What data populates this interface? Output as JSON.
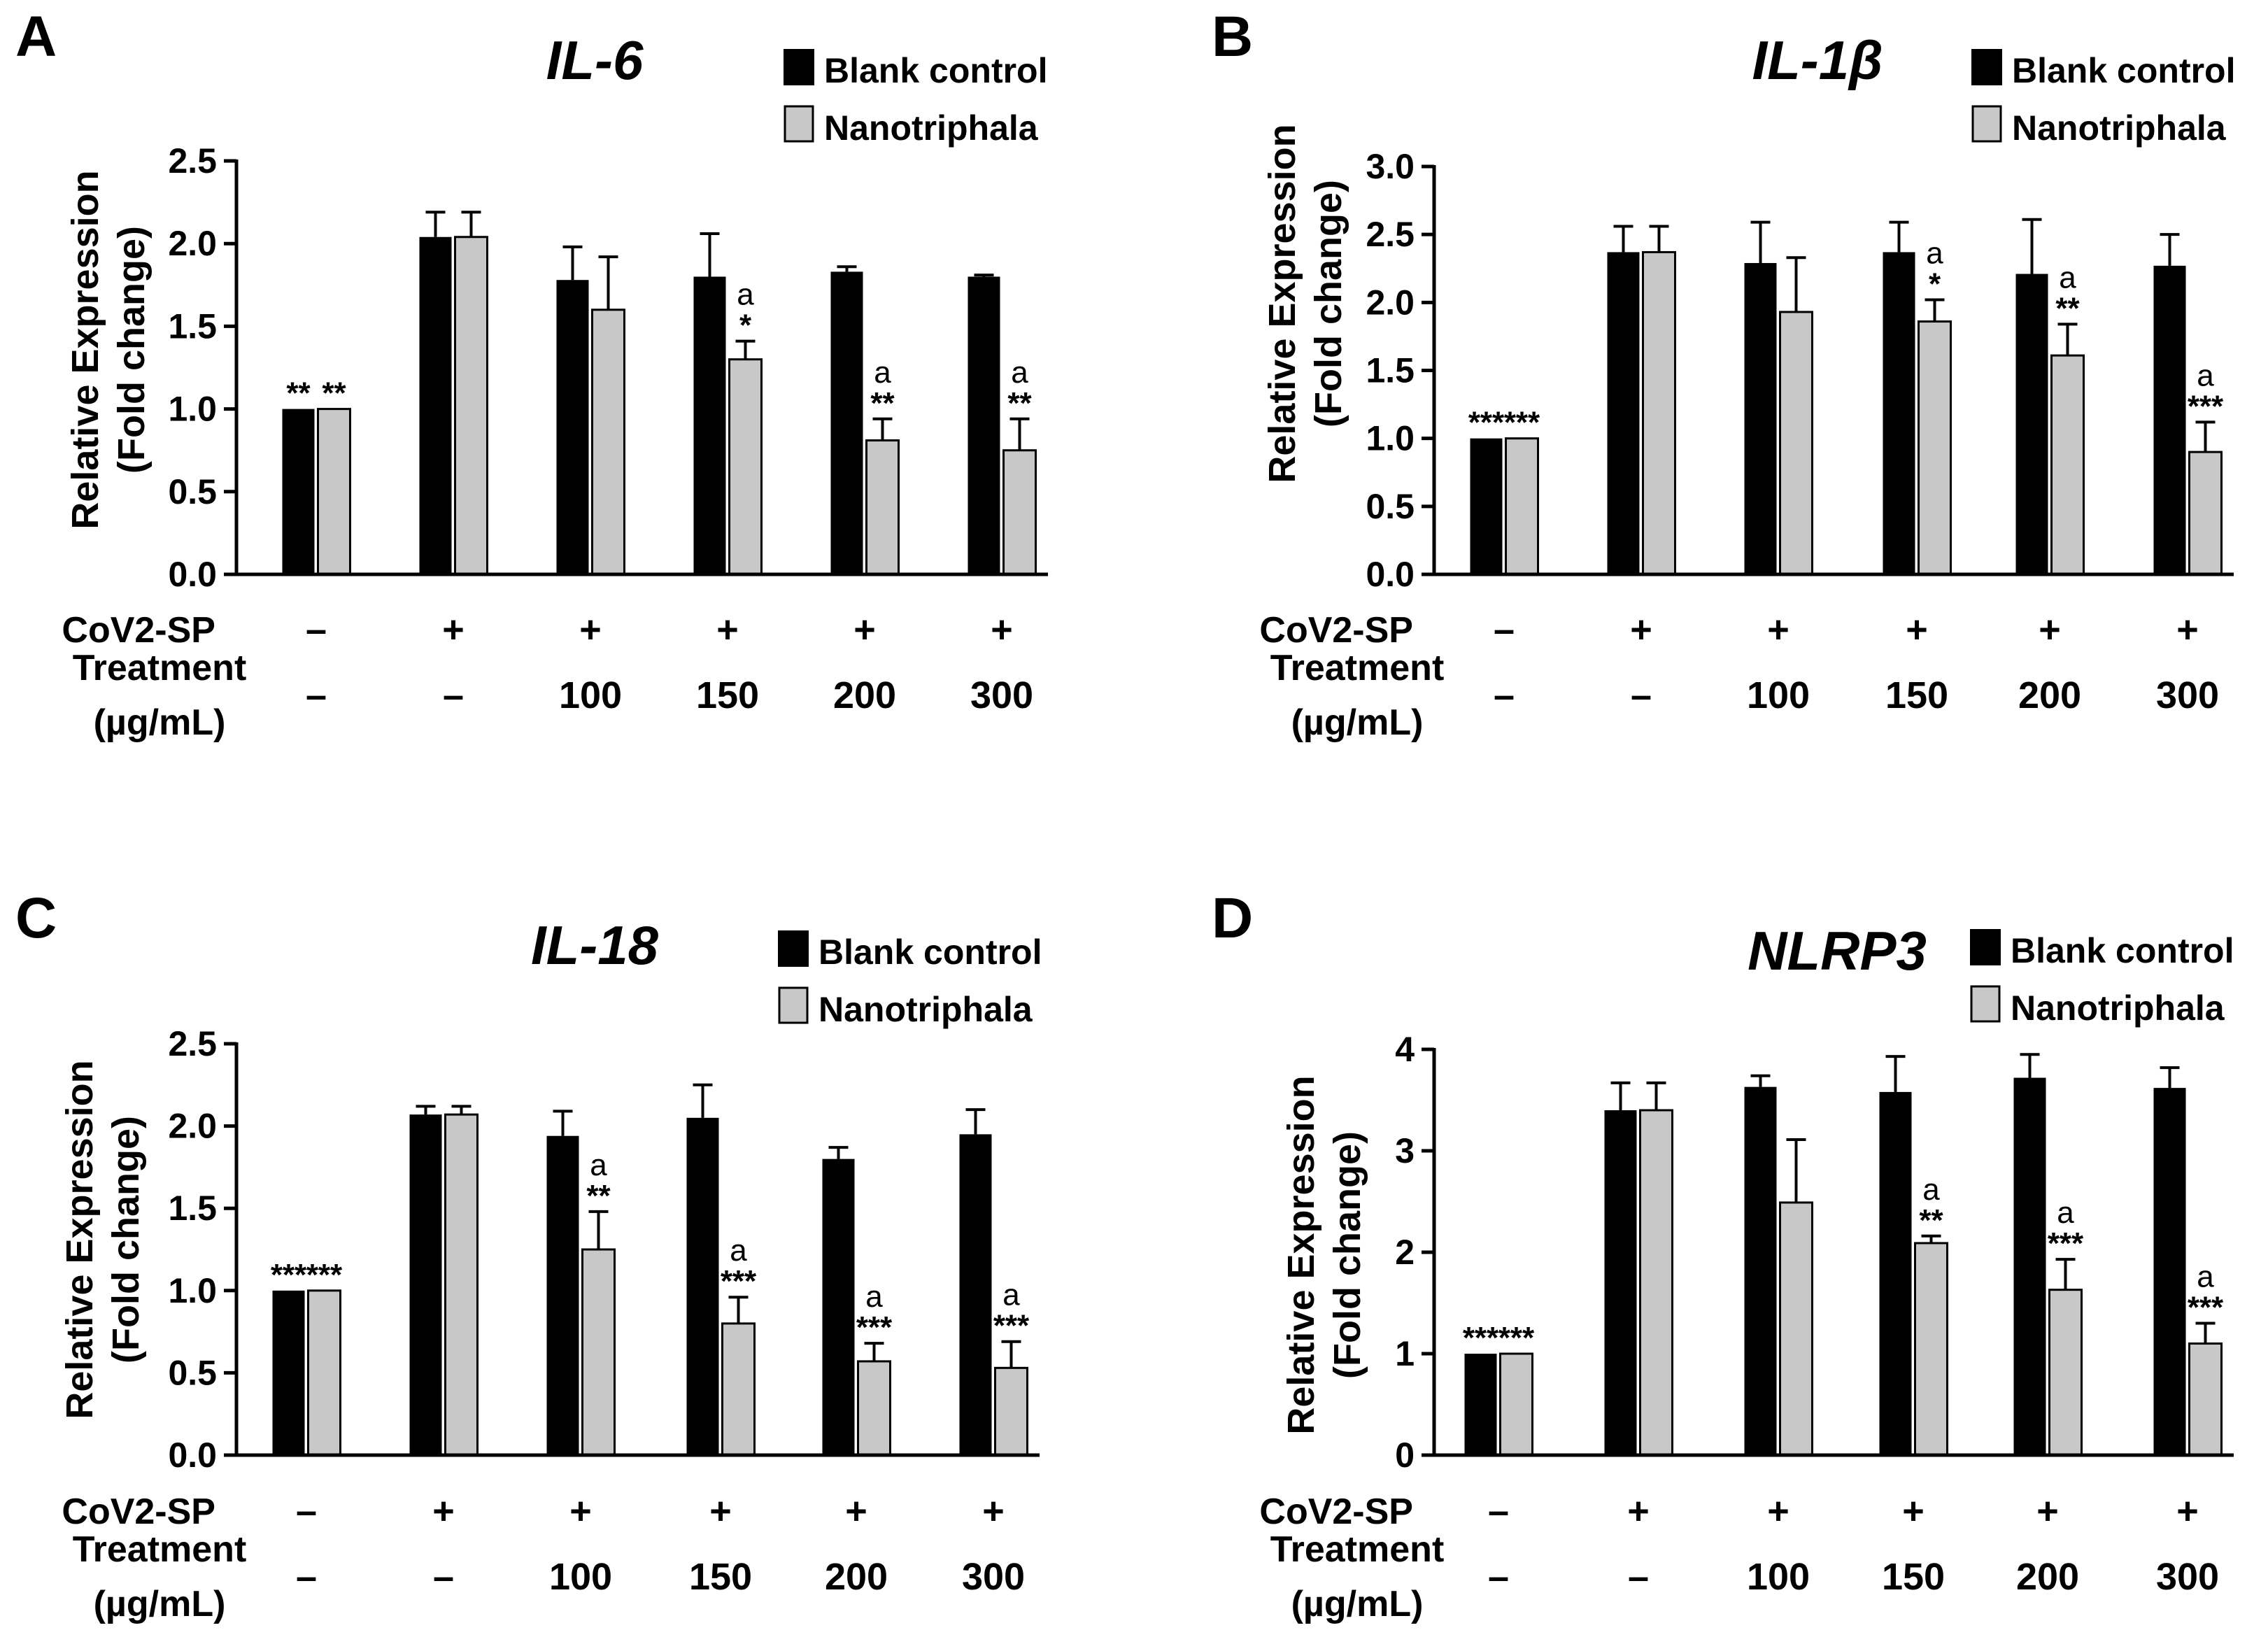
{
  "legend": {
    "blank_label": "Blank control",
    "nano_label": "Nanotriphala",
    "blank_color": "#000000",
    "nano_color": "#c8c8c8"
  },
  "row_labels": {
    "cov": "CoV2-SP",
    "treatment": "Treatment",
    "unit": "(µg/mL)"
  },
  "conditions": {
    "cov": [
      "–",
      "+",
      "+",
      "+",
      "+",
      "+"
    ],
    "treatment": [
      "–",
      "–",
      "100",
      "150",
      "200",
      "300"
    ]
  },
  "ylabel": {
    "line1": "Relative Expression",
    "line2": "(Fold change)"
  },
  "chart_data": [
    {
      "type": "bar",
      "panel": "A",
      "title": "IL-6",
      "ylim": [
        0,
        2.5
      ],
      "yticks": [
        "0.0",
        "0.5",
        "1.0",
        "1.5",
        "2.0",
        "2.5"
      ],
      "series": [
        {
          "name": "Blank control",
          "values": [
            1.0,
            2.04,
            1.78,
            1.8,
            1.83,
            1.8
          ],
          "errors": [
            0,
            0.15,
            0.2,
            0.26,
            0.03,
            0.01
          ]
        },
        {
          "name": "Nanotriphala",
          "values": [
            1.0,
            2.04,
            1.6,
            1.3,
            0.81,
            0.75
          ],
          "errors": [
            0,
            0.15,
            0.32,
            0.11,
            0.13,
            0.19
          ]
        }
      ],
      "annotations": {
        "blank": [
          "**",
          "",
          "",
          "",
          "",
          ""
        ],
        "nano": [
          "**",
          "",
          "",
          "*",
          "**",
          "**"
        ],
        "nano_a": [
          "",
          "",
          "",
          "a",
          "a",
          "a"
        ]
      }
    },
    {
      "type": "bar",
      "panel": "B",
      "title": "IL-1β",
      "ylim": [
        0,
        3.0
      ],
      "yticks": [
        "0.0",
        "0.5",
        "1.0",
        "1.5",
        "2.0",
        "2.5",
        "3.0"
      ],
      "series": [
        {
          "name": "Blank control",
          "values": [
            1.0,
            2.37,
            2.29,
            2.37,
            2.21,
            2.27
          ],
          "errors": [
            0,
            0.19,
            0.3,
            0.22,
            0.4,
            0.23
          ]
        },
        {
          "name": "Nanotriphala",
          "values": [
            1.0,
            2.37,
            1.93,
            1.86,
            1.61,
            0.9
          ],
          "errors": [
            0,
            0.19,
            0.4,
            0.16,
            0.23,
            0.22
          ]
        }
      ],
      "annotations": {
        "blank": [
          "***",
          "",
          "",
          "",
          "",
          ""
        ],
        "nano": [
          "***",
          "",
          "",
          "*",
          "**",
          "***"
        ],
        "nano_a": [
          "",
          "",
          "",
          "a",
          "a",
          "a"
        ]
      }
    },
    {
      "type": "bar",
      "panel": "C",
      "title": "IL-18",
      "ylim": [
        0,
        2.5
      ],
      "yticks": [
        "0.0",
        "0.5",
        "1.0",
        "1.5",
        "2.0",
        "2.5"
      ],
      "series": [
        {
          "name": "Blank control",
          "values": [
            1.0,
            2.07,
            1.94,
            2.05,
            1.8,
            1.95
          ],
          "errors": [
            0,
            0.05,
            0.15,
            0.2,
            0.07,
            0.15
          ]
        },
        {
          "name": "Nanotriphala",
          "values": [
            1.0,
            2.07,
            1.25,
            0.8,
            0.57,
            0.53
          ],
          "errors": [
            0,
            0.05,
            0.23,
            0.16,
            0.11,
            0.16
          ]
        }
      ],
      "annotations": {
        "blank": [
          "***",
          "",
          "",
          "",
          "",
          ""
        ],
        "nano": [
          "***",
          "",
          "**",
          "***",
          "***",
          "***"
        ],
        "nano_a": [
          "",
          "",
          "a",
          "a",
          "a",
          "a"
        ]
      }
    },
    {
      "type": "bar",
      "panel": "D",
      "title": "NLRP3",
      "ylim": [
        0,
        4
      ],
      "yticks": [
        "0",
        "1",
        "2",
        "3",
        "4"
      ],
      "series": [
        {
          "name": "Blank control",
          "values": [
            1.0,
            3.4,
            3.63,
            3.58,
            3.72,
            3.62
          ],
          "errors": [
            0,
            0.27,
            0.11,
            0.35,
            0.23,
            0.2
          ]
        },
        {
          "name": "Nanotriphala",
          "values": [
            1.0,
            3.4,
            2.49,
            2.09,
            1.63,
            1.1
          ],
          "errors": [
            0,
            0.27,
            0.62,
            0.07,
            0.3,
            0.2
          ]
        }
      ],
      "annotations": {
        "blank": [
          "***",
          "",
          "",
          "",
          "",
          ""
        ],
        "nano": [
          "***",
          "",
          "",
          "**",
          "***",
          "***"
        ],
        "nano_a": [
          "",
          "",
          "",
          "a",
          "a",
          "a"
        ]
      }
    }
  ]
}
